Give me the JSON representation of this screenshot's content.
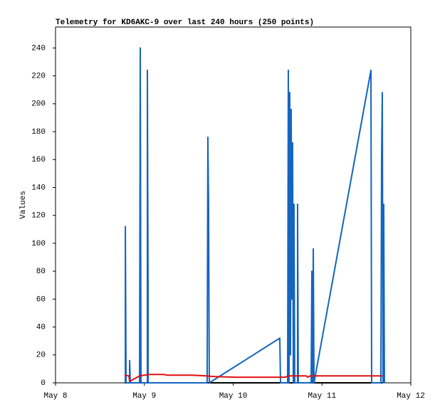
{
  "chart_data": {
    "type": "line",
    "title": "Telemetry for KD6AKC-9 over last 240 hours (250 points)",
    "y_label": "Values",
    "xlim": [
      0,
      4
    ],
    "xticks": [
      {
        "value": 0,
        "label": "May 8"
      },
      {
        "value": 1,
        "label": "May 9"
      },
      {
        "value": 2,
        "label": "May 10"
      },
      {
        "value": 3,
        "label": "May 11"
      },
      {
        "value": 4,
        "label": "May 12"
      }
    ],
    "ylim": [
      0,
      255
    ],
    "yticks": [
      0,
      20,
      40,
      60,
      80,
      100,
      120,
      140,
      160,
      180,
      200,
      220,
      240
    ],
    "series": [
      {
        "color": "#000000",
        "x": [
          0.778,
          3.679
        ],
        "values": [
          0,
          0
        ]
      },
      {
        "color": "#1565c0",
        "x": [
          0.786,
          0.786,
          0.794,
          0.834,
          0.834,
          0.842,
          0.946,
          0.954,
          0.962,
          1.034,
          1.034,
          1.042,
          1.042,
          1.707,
          1.715,
          1.723,
          1.731,
          2.525,
          2.533,
          2.613,
          2.621,
          2.629,
          2.637,
          2.645,
          2.653,
          2.661,
          2.669,
          2.677,
          2.685,
          2.693,
          2.725,
          2.725,
          2.733,
          2.878,
          2.886,
          2.894,
          2.902,
          2.91,
          3.551,
          3.559,
          3.663,
          3.671,
          3.679,
          3.687,
          3.695,
          3.703
        ],
        "values": [
          0,
          112,
          0,
          0,
          16,
          0,
          0,
          240,
          0,
          0,
          224,
          64,
          0,
          0,
          176,
          128,
          0,
          32,
          0,
          0,
          224,
          0,
          208,
          20,
          196,
          60,
          172,
          0,
          128,
          0,
          0,
          128,
          0,
          0,
          80,
          0,
          96,
          0,
          224,
          0,
          0,
          160,
          208,
          0,
          128,
          0
        ]
      },
      {
        "color": "#e01010",
        "x": [
          0.778,
          0.826,
          0.834,
          0.946,
          1.058,
          1.218,
          1.259,
          1.539,
          1.699,
          1.78,
          2.02,
          2.581,
          2.621,
          2.822,
          2.838,
          2.87,
          3.679
        ],
        "values": [
          5.5,
          5,
          1,
          5,
          6,
          6,
          5.5,
          5.5,
          5,
          4.5,
          4,
          4,
          5,
          5,
          4,
          5,
          5
        ]
      }
    ]
  }
}
